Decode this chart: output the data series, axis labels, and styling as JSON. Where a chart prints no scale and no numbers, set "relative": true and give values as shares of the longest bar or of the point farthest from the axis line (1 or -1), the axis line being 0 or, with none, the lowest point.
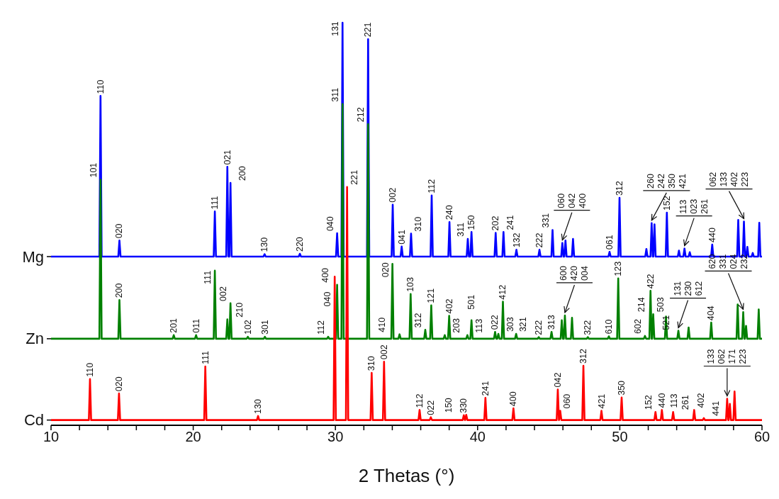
{
  "chart_data": {
    "type": "line",
    "relative": true,
    "xlabel": "2 Thetas (°)",
    "xlim": [
      10,
      60
    ],
    "xticks": [
      10,
      {
        "value": 12,
        "label": null
      },
      {
        "value": 14,
        "label": null
      },
      {
        "value": 16,
        "label": null
      },
      {
        "value": 18,
        "label": null
      },
      20,
      {
        "value": 22,
        "label": null
      },
      {
        "value": 24,
        "label": null
      },
      {
        "value": 26,
        "label": null
      },
      {
        "value": 28,
        "label": null
      },
      30,
      {
        "value": 32,
        "label": null
      },
      {
        "value": 34,
        "label": null
      },
      {
        "value": 36,
        "label": null
      },
      {
        "value": 38,
        "label": null
      },
      40,
      {
        "value": 42,
        "label": null
      },
      {
        "value": 44,
        "label": null
      },
      {
        "value": 46,
        "label": null
      },
      {
        "value": 48,
        "label": null
      },
      50,
      {
        "value": 52,
        "label": null
      },
      {
        "value": 54,
        "label": null
      },
      {
        "value": 56,
        "label": null
      },
      {
        "value": 58,
        "label": null
      },
      60
    ],
    "marker": "none",
    "series": [
      {
        "name": "Mg",
        "color": "#0000ff",
        "x": [
          10,
          13.4,
          13.48,
          13.56,
          14.73,
          14.81,
          14.89,
          21.44,
          21.52,
          21.6,
          22.32,
          22.4,
          22.48,
          22.54,
          22.62,
          22.7,
          24.94,
          25.02,
          25.1,
          27.42,
          27.5,
          27.58,
          30.04,
          30.12,
          30.2,
          30.42,
          30.5,
          30.58,
          32.22,
          32.3,
          32.38,
          33.95,
          34.03,
          34.11,
          34.58,
          34.66,
          34.74,
          35.24,
          35.32,
          35.4,
          36.69,
          36.77,
          36.85,
          37.94,
          38.02,
          38.1,
          39.23,
          39.31,
          39.39,
          39.49,
          39.57,
          39.65,
          41.19,
          41.27,
          41.35,
          41.74,
          41.82,
          41.9,
          42.65,
          42.73,
          42.81,
          44.27,
          44.35,
          44.43,
          45.19,
          45.27,
          45.35,
          45.88,
          45.96,
          46.04,
          46.1,
          46.18,
          46.26,
          46.63,
          46.71,
          46.79,
          49.2,
          49.28,
          49.36,
          49.9,
          49.98,
          50.06,
          51.79,
          51.87,
          51.95,
          52.16,
          52.24,
          52.32,
          52.36,
          52.44,
          52.52,
          53.23,
          53.31,
          53.39,
          54.08,
          54.16,
          54.24,
          54.47,
          54.55,
          54.63,
          54.84,
          54.92,
          55.0,
          56.42,
          56.5,
          56.58,
          58.25,
          58.33,
          58.41,
          58.65,
          58.73,
          58.81,
          58.89,
          58.97,
          59.05,
          59.27,
          59.35,
          59.43,
          59.73,
          59.81,
          59.89,
          60
        ],
        "values": [
          0.419,
          0.419,
          0.818,
          0.419,
          0.419,
          0.459,
          0.419,
          0.419,
          0.531,
          0.419,
          0.419,
          0.642,
          0.419,
          0.419,
          0.602,
          0.419,
          0.419,
          0.425,
          0.419,
          0.419,
          0.426,
          0.419,
          0.419,
          0.477,
          0.419,
          0.419,
          1.0,
          0.419,
          0.419,
          0.959,
          0.419,
          0.419,
          0.548,
          0.419,
          0.419,
          0.444,
          0.419,
          0.419,
          0.476,
          0.419,
          0.419,
          0.571,
          0.419,
          0.419,
          0.505,
          0.419,
          0.419,
          0.463,
          0.419,
          0.419,
          0.48,
          0.419,
          0.419,
          0.478,
          0.419,
          0.419,
          0.48,
          0.419,
          0.419,
          0.436,
          0.419,
          0.419,
          0.436,
          0.419,
          0.419,
          0.485,
          0.419,
          0.419,
          0.453,
          0.419,
          0.419,
          0.459,
          0.419,
          0.419,
          0.463,
          0.419,
          0.419,
          0.431,
          0.419,
          0.419,
          0.565,
          0.419,
          0.419,
          0.438,
          0.419,
          0.419,
          0.502,
          0.419,
          0.419,
          0.499,
          0.419,
          0.419,
          0.528,
          0.419,
          0.419,
          0.434,
          0.419,
          0.419,
          0.439,
          0.419,
          0.419,
          0.43,
          0.419,
          0.419,
          0.449,
          0.419,
          0.419,
          0.51,
          0.419,
          0.419,
          0.506,
          0.419,
          0.419,
          0.443,
          0.419,
          0.419,
          0.428,
          0.419,
          0.419,
          0.503,
          0.419,
          0.419
        ]
      },
      {
        "name": "Zn",
        "color": "#008000",
        "x": [
          10,
          13.4,
          13.48,
          13.56,
          14.73,
          14.81,
          14.89,
          18.55,
          18.63,
          18.71,
          20.12,
          20.2,
          20.28,
          21.44,
          21.52,
          21.6,
          22.32,
          22.4,
          22.48,
          22.54,
          22.62,
          22.7,
          23.76,
          23.84,
          23.92,
          24.96,
          25.04,
          25.12,
          29.41,
          29.49,
          29.57,
          30.04,
          30.12,
          30.2,
          30.42,
          30.5,
          30.58,
          32.22,
          32.3,
          32.38,
          33.93,
          34.01,
          34.09,
          34.43,
          34.51,
          34.59,
          35.21,
          35.29,
          35.37,
          36.24,
          36.32,
          36.4,
          36.66,
          36.74,
          36.82,
          37.61,
          37.69,
          37.77,
          37.92,
          38.0,
          38.08,
          39.2,
          39.28,
          39.36,
          39.49,
          39.57,
          39.65,
          41.15,
          41.23,
          41.31,
          41.38,
          41.46,
          41.54,
          41.7,
          41.78,
          41.86,
          42.63,
          42.71,
          42.79,
          44.22,
          44.3,
          44.38,
          45.12,
          45.2,
          45.28,
          45.84,
          45.92,
          46.0,
          46.06,
          46.14,
          46.22,
          46.56,
          46.64,
          46.72,
          47.67,
          47.75,
          47.83,
          49.15,
          49.23,
          49.31,
          49.81,
          49.89,
          49.97,
          51.69,
          51.77,
          51.85,
          52.08,
          52.16,
          52.24,
          52.27,
          52.35,
          52.43,
          53.17,
          53.25,
          53.33,
          54.04,
          54.12,
          54.2,
          54.76,
          54.84,
          54.92,
          56.35,
          56.43,
          56.51,
          58.21,
          58.29,
          58.37,
          58.6,
          58.68,
          58.76,
          58.8,
          58.88,
          58.96,
          59.69,
          59.77,
          59.85,
          60
        ],
        "values": [
          0.215,
          0.215,
          0.61,
          0.215,
          0.215,
          0.311,
          0.215,
          0.215,
          0.224,
          0.215,
          0.215,
          0.224,
          0.215,
          0.215,
          0.384,
          0.215,
          0.215,
          0.263,
          0.215,
          0.215,
          0.303,
          0.215,
          0.215,
          0.22,
          0.215,
          0.215,
          0.22,
          0.215,
          0.215,
          0.22,
          0.215,
          0.215,
          0.349,
          0.215,
          0.215,
          0.798,
          0.215,
          0.215,
          0.748,
          0.215,
          0.215,
          0.401,
          0.215,
          0.215,
          0.226,
          0.215,
          0.215,
          0.326,
          0.215,
          0.215,
          0.237,
          0.215,
          0.215,
          0.298,
          0.215,
          0.215,
          0.224,
          0.215,
          0.215,
          0.272,
          0.215,
          0.215,
          0.224,
          0.215,
          0.215,
          0.261,
          0.215,
          0.215,
          0.232,
          0.215,
          0.215,
          0.227,
          0.215,
          0.215,
          0.307,
          0.215,
          0.215,
          0.227,
          0.215,
          0.215,
          0.219,
          0.215,
          0.215,
          0.232,
          0.215,
          0.215,
          0.261,
          0.215,
          0.215,
          0.273,
          0.215,
          0.215,
          0.267,
          0.215,
          0.215,
          0.219,
          0.215,
          0.215,
          0.221,
          0.215,
          0.215,
          0.365,
          0.215,
          0.215,
          0.222,
          0.215,
          0.215,
          0.334,
          0.215,
          0.215,
          0.276,
          0.215,
          0.215,
          0.27,
          0.215,
          0.215,
          0.235,
          0.215,
          0.215,
          0.243,
          0.215,
          0.215,
          0.255,
          0.215,
          0.215,
          0.3,
          0.215,
          0.215,
          0.281,
          0.215,
          0.215,
          0.247,
          0.215,
          0.215,
          0.288,
          0.215,
          0.215
        ]
      },
      {
        "name": "Cd",
        "color": "#ff0000",
        "x": [
          10,
          12.66,
          12.74,
          12.82,
          14.7,
          14.78,
          14.86,
          20.77,
          20.85,
          20.93,
          24.48,
          24.56,
          24.64,
          29.87,
          29.95,
          30.03,
          30.74,
          30.82,
          30.9,
          32.47,
          32.55,
          32.63,
          33.34,
          33.42,
          33.5,
          35.84,
          35.92,
          36.0,
          36.63,
          36.71,
          36.79,
          38.95,
          39.03,
          39.11,
          39.12,
          39.2,
          39.28,
          40.47,
          40.55,
          40.63,
          42.44,
          42.52,
          42.6,
          45.56,
          45.64,
          45.72,
          45.73,
          45.81,
          45.89,
          47.36,
          47.44,
          47.52,
          48.63,
          48.71,
          48.79,
          50.05,
          50.13,
          50.21,
          52.43,
          52.51,
          52.59,
          52.88,
          52.96,
          53.04,
          53.67,
          53.75,
          53.83,
          55.15,
          55.23,
          55.31,
          55.83,
          55.91,
          55.99,
          57.47,
          57.55,
          57.63,
          57.66,
          57.74,
          57.82,
          57.99,
          58.07,
          58.15,
          60
        ],
        "values": [
          0.013,
          0.013,
          0.115,
          0.013,
          0.013,
          0.079,
          0.013,
          0.013,
          0.146,
          0.013,
          0.013,
          0.023,
          0.013,
          0.013,
          0.369,
          0.013,
          0.013,
          0.592,
          0.013,
          0.013,
          0.13,
          0.013,
          0.013,
          0.158,
          0.013,
          0.013,
          0.038,
          0.013,
          0.013,
          0.02,
          0.013,
          0.013,
          0.025,
          0.013,
          0.013,
          0.026,
          0.013,
          0.013,
          0.068,
          0.013,
          0.013,
          0.042,
          0.013,
          0.013,
          0.089,
          0.013,
          0.013,
          0.036,
          0.013,
          0.013,
          0.148,
          0.013,
          0.013,
          0.036,
          0.013,
          0.013,
          0.069,
          0.013,
          0.013,
          0.033,
          0.013,
          0.013,
          0.038,
          0.013,
          0.013,
          0.033,
          0.013,
          0.013,
          0.038,
          0.013,
          0.013,
          0.018,
          0.013,
          0.013,
          0.066,
          0.013,
          0.013,
          0.053,
          0.013,
          0.013,
          0.084,
          0.013,
          0.013
        ]
      }
    ],
    "annotations": [
      {
        "text": "110",
        "x": 13.48,
        "y": 0.818
      },
      {
        "text": "020",
        "x": 14.81,
        "y": 0.459
      },
      {
        "text": "111",
        "x": 21.52,
        "y": 0.531
      },
      {
        "text": "021",
        "x": 22.4,
        "y": 0.642
      },
      {
        "text": "200",
        "x": 22.62,
        "y": 0.602
      },
      {
        "text": "130",
        "x": 25.02,
        "y": 0.425
      },
      {
        "text": "220",
        "x": 27.5,
        "y": 0.426
      },
      {
        "text": "040",
        "x": 30.12,
        "y": 0.477
      },
      {
        "text": "131",
        "x": 30.5,
        "y": 1.0
      },
      {
        "text": "221",
        "x": 32.3,
        "y": 0.959
      },
      {
        "text": "002",
        "x": 34.03,
        "y": 0.548
      },
      {
        "text": "041",
        "x": 34.66,
        "y": 0.444
      },
      {
        "text": "310",
        "x": 35.32,
        "y": 0.476
      },
      {
        "text": "112",
        "x": 36.77,
        "y": 0.571
      },
      {
        "text": "240",
        "x": 38.02,
        "y": 0.505
      },
      {
        "text": "311",
        "x": 39.31,
        "y": 0.463
      },
      {
        "text": "150",
        "x": 39.57,
        "y": 0.48
      },
      {
        "text": "202",
        "x": 41.27,
        "y": 0.478
      },
      {
        "text": "241",
        "x": 41.82,
        "y": 0.48
      },
      {
        "text": "132",
        "x": 42.73,
        "y": 0.436
      },
      {
        "text": "222",
        "x": 44.35,
        "y": 0.436
      },
      {
        "text": "331",
        "x": 45.27,
        "y": 0.485
      },
      {
        "text": "060 042 400",
        "x": 45.96,
        "y": 0.453
      },
      {
        "text": "061",
        "x": 49.28,
        "y": 0.431
      },
      {
        "text": "312",
        "x": 49.98,
        "y": 0.565
      },
      {
        "text": "260 242 350 421",
        "x": 52.24,
        "y": 0.502
      },
      {
        "text": "152",
        "x": 53.31,
        "y": 0.528
      },
      {
        "text": "113 023 261",
        "x": 54.55,
        "y": 0.439
      },
      {
        "text": "440",
        "x": 56.5,
        "y": 0.449
      },
      {
        "text": "062 133 402 223",
        "x": 58.73,
        "y": 0.506
      },
      {
        "text": "101",
        "x": 13.48,
        "y": 0.61
      },
      {
        "text": "200",
        "x": 14.81,
        "y": 0.311
      },
      {
        "text": "201",
        "x": 18.63,
        "y": 0.224
      },
      {
        "text": "011",
        "x": 20.2,
        "y": 0.224
      },
      {
        "text": "111",
        "x": 21.52,
        "y": 0.384
      },
      {
        "text": "210",
        "x": 22.4,
        "y": 0.263
      },
      {
        "text": "002",
        "x": 22.62,
        "y": 0.303
      },
      {
        "text": "102",
        "x": 23.84,
        "y": 0.22
      },
      {
        "text": "301",
        "x": 25.04,
        "y": 0.22
      },
      {
        "text": "112",
        "x": 29.49,
        "y": 0.22
      },
      {
        "text": "400",
        "x": 30.12,
        "y": 0.349
      },
      {
        "text": "311",
        "x": 30.5,
        "y": 0.798
      },
      {
        "text": "212",
        "x": 32.3,
        "y": 0.748
      },
      {
        "text": "020",
        "x": 34.01,
        "y": 0.401
      },
      {
        "text": "410",
        "x": 34.51,
        "y": 0.226
      },
      {
        "text": "103",
        "x": 35.29,
        "y": 0.326
      },
      {
        "text": "312",
        "x": 36.32,
        "y": 0.237
      },
      {
        "text": "121",
        "x": 36.74,
        "y": 0.298
      },
      {
        "text": "203",
        "x": 37.69,
        "y": 0.224
      },
      {
        "text": "402",
        "x": 38.0,
        "y": 0.272
      },
      {
        "text": "113",
        "x": 39.28,
        "y": 0.224
      },
      {
        "text": "501",
        "x": 39.57,
        "y": 0.261
      },
      {
        "text": "022",
        "x": 41.23,
        "y": 0.232
      },
      {
        "text": "303",
        "x": 41.46,
        "y": 0.227
      },
      {
        "text": "412",
        "x": 41.78,
        "y": 0.307
      },
      {
        "text": "321",
        "x": 42.71,
        "y": 0.227
      },
      {
        "text": "222",
        "x": 44.3,
        "y": 0.219
      },
      {
        "text": "313",
        "x": 45.2,
        "y": 0.232
      },
      {
        "text": "600 420 004",
        "x": 46.14,
        "y": 0.273
      },
      {
        "text": "322",
        "x": 47.75,
        "y": 0.219
      },
      {
        "text": "610",
        "x": 49.23,
        "y": 0.221
      },
      {
        "text": "123",
        "x": 49.89,
        "y": 0.365
      },
      {
        "text": "602",
        "x": 51.77,
        "y": 0.222
      },
      {
        "text": "422",
        "x": 52.16,
        "y": 0.334
      },
      {
        "text": "503",
        "x": 52.35,
        "y": 0.276
      },
      {
        "text": "214",
        "x": 52.35,
        "y": 0.276
      },
      {
        "text": "521",
        "x": 53.25,
        "y": 0.27
      },
      {
        "text": "131 230 612",
        "x": 54.12,
        "y": 0.235
      },
      {
        "text": "404",
        "x": 56.43,
        "y": 0.255
      },
      {
        "text": "620 331 024 232",
        "x": 58.68,
        "y": 0.281
      },
      {
        "text": "110",
        "x": 12.74,
        "y": 0.115
      },
      {
        "text": "020",
        "x": 14.78,
        "y": 0.079
      },
      {
        "text": "111",
        "x": 20.85,
        "y": 0.146
      },
      {
        "text": "130",
        "x": 24.56,
        "y": 0.023
      },
      {
        "text": "040",
        "x": 29.95,
        "y": 0.369
      },
      {
        "text": "221",
        "x": 30.82,
        "y": 0.592
      },
      {
        "text": "310",
        "x": 32.55,
        "y": 0.13
      },
      {
        "text": "002",
        "x": 33.42,
        "y": 0.158
      },
      {
        "text": "112",
        "x": 35.92,
        "y": 0.038
      },
      {
        "text": "022",
        "x": 36.71,
        "y": 0.02
      },
      {
        "text": "330",
        "x": 39.03,
        "y": 0.025
      },
      {
        "text": "150",
        "x": 39.2,
        "y": 0.026
      },
      {
        "text": "241",
        "x": 40.55,
        "y": 0.068
      },
      {
        "text": "400",
        "x": 42.52,
        "y": 0.042
      },
      {
        "text": "042",
        "x": 45.64,
        "y": 0.089
      },
      {
        "text": "060",
        "x": 45.81,
        "y": 0.036
      },
      {
        "text": "312",
        "x": 47.44,
        "y": 0.148
      },
      {
        "text": "421",
        "x": 48.71,
        "y": 0.036
      },
      {
        "text": "350",
        "x": 50.13,
        "y": 0.069
      },
      {
        "text": "152",
        "x": 52.51,
        "y": 0.033
      },
      {
        "text": "440",
        "x": 52.96,
        "y": 0.038
      },
      {
        "text": "113",
        "x": 52.96,
        "y": 0.038
      },
      {
        "text": "261",
        "x": 53.75,
        "y": 0.033
      },
      {
        "text": "402",
        "x": 55.23,
        "y": 0.038
      },
      {
        "text": "441",
        "x": 55.91,
        "y": 0.018
      },
      {
        "text": "133 062 171 223",
        "x": 57.55,
        "y": 0.066
      }
    ]
  }
}
